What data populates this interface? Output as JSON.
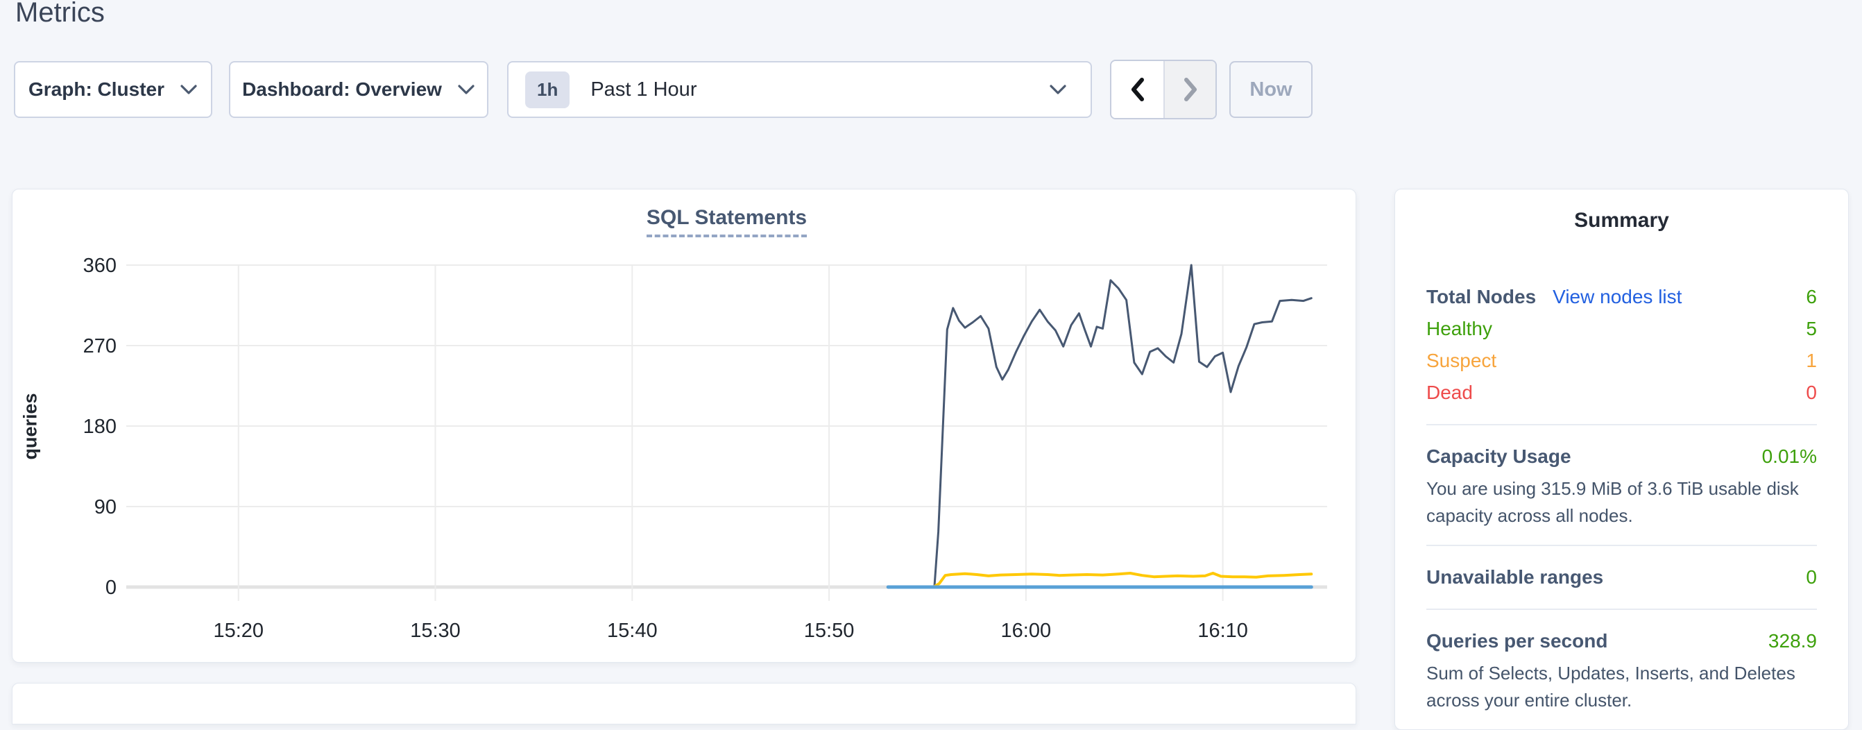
{
  "page": {
    "title": "Metrics"
  },
  "toolbar": {
    "graph_dropdown": {
      "label": "Graph: Cluster"
    },
    "dashboard_dropdown": {
      "label": "Dashboard: Overview"
    },
    "time_picker": {
      "badge": "1h",
      "label": "Past 1 Hour"
    },
    "now_button": {
      "label": "Now"
    }
  },
  "colors": {
    "page_background": "#f4f6fa",
    "accent_link": "#2260e0",
    "healthy_green": "#3da00b",
    "suspect_orange": "#f7a43c",
    "dead_red": "#ee4b4b",
    "heading_slate": "#475872"
  },
  "chart_data": {
    "type": "line",
    "title": "SQL Statements",
    "xlabel": "",
    "ylabel": "queries",
    "grid": true,
    "legend_position": "none",
    "x_axis": {
      "unit": "minutes-since-midnight",
      "min": 914.3,
      "max": 975.3,
      "ticks": [
        {
          "x": 920,
          "label": "15:20"
        },
        {
          "x": 930,
          "label": "15:30"
        },
        {
          "x": 940,
          "label": "15:40"
        },
        {
          "x": 950,
          "label": "15:50"
        },
        {
          "x": 960,
          "label": "16:00"
        },
        {
          "x": 970,
          "label": "16:10"
        }
      ]
    },
    "y_axis": {
      "min": 0,
      "max": 360,
      "ticks": [
        0,
        90,
        180,
        270,
        360
      ]
    },
    "series": [
      {
        "name": "series-1-navy",
        "color": "#475872",
        "stroke_width": 3,
        "points": [
          [
            953.0,
            0
          ],
          [
            955.35,
            0
          ],
          [
            955.55,
            62
          ],
          [
            956.0,
            288
          ],
          [
            956.3,
            312
          ],
          [
            956.6,
            298
          ],
          [
            956.9,
            290
          ],
          [
            957.3,
            296
          ],
          [
            957.7,
            303
          ],
          [
            958.1,
            289
          ],
          [
            958.5,
            246
          ],
          [
            958.8,
            232
          ],
          [
            959.1,
            243
          ],
          [
            959.5,
            263
          ],
          [
            959.9,
            281
          ],
          [
            960.3,
            297
          ],
          [
            960.7,
            310
          ],
          [
            961.1,
            297
          ],
          [
            961.5,
            287
          ],
          [
            961.9,
            269
          ],
          [
            962.3,
            293
          ],
          [
            962.7,
            306
          ],
          [
            963.0,
            287
          ],
          [
            963.3,
            269
          ],
          [
            963.6,
            291
          ],
          [
            963.9,
            289
          ],
          [
            964.3,
            343
          ],
          [
            964.7,
            334
          ],
          [
            965.1,
            321
          ],
          [
            965.5,
            251
          ],
          [
            965.9,
            238
          ],
          [
            966.3,
            263
          ],
          [
            966.7,
            267
          ],
          [
            967.1,
            258
          ],
          [
            967.5,
            251
          ],
          [
            967.9,
            283
          ],
          [
            968.4,
            360
          ],
          [
            968.8,
            252
          ],
          [
            969.2,
            246
          ],
          [
            969.6,
            258
          ],
          [
            970.0,
            262
          ],
          [
            970.4,
            218
          ],
          [
            970.8,
            247
          ],
          [
            971.2,
            268
          ],
          [
            971.6,
            294
          ],
          [
            972.0,
            296
          ],
          [
            972.5,
            297
          ],
          [
            972.9,
            320
          ],
          [
            973.5,
            321
          ],
          [
            974.1,
            320
          ],
          [
            974.5,
            323
          ]
        ]
      },
      {
        "name": "series-2-yellow",
        "color": "#ffc805",
        "stroke_width": 4,
        "points": [
          [
            953.0,
            0
          ],
          [
            955.3,
            0
          ],
          [
            955.6,
            4
          ],
          [
            955.9,
            13
          ],
          [
            956.2,
            14
          ],
          [
            956.9,
            15
          ],
          [
            957.5,
            14
          ],
          [
            958.1,
            12.5
          ],
          [
            958.7,
            13.5
          ],
          [
            959.5,
            14
          ],
          [
            960.3,
            14.5
          ],
          [
            961.1,
            14
          ],
          [
            961.7,
            13
          ],
          [
            962.3,
            13.5
          ],
          [
            963.1,
            14
          ],
          [
            963.9,
            13.5
          ],
          [
            964.7,
            14.5
          ],
          [
            965.3,
            15.5
          ],
          [
            965.9,
            13
          ],
          [
            966.5,
            11.5
          ],
          [
            967.1,
            12
          ],
          [
            967.7,
            12.5
          ],
          [
            968.5,
            12
          ],
          [
            969.1,
            12.5
          ],
          [
            969.5,
            15.5
          ],
          [
            969.9,
            12
          ],
          [
            970.5,
            11.5
          ],
          [
            971.1,
            11.5
          ],
          [
            971.7,
            11
          ],
          [
            972.3,
            12.5
          ],
          [
            973.1,
            13
          ],
          [
            973.9,
            14
          ],
          [
            974.5,
            14.5
          ]
        ]
      },
      {
        "name": "series-3-blue",
        "color": "#58a0d6",
        "stroke_width": 5,
        "points": [
          [
            953.0,
            0
          ],
          [
            974.5,
            0
          ]
        ]
      }
    ]
  },
  "summary": {
    "title": "Summary",
    "nodes": {
      "label": "Total Nodes",
      "link": "View nodes list",
      "value": "6",
      "rows": [
        {
          "label": "Healthy",
          "value": "5"
        },
        {
          "label": "Suspect",
          "value": "1"
        },
        {
          "label": "Dead",
          "value": "0"
        }
      ]
    },
    "capacity": {
      "label": "Capacity Usage",
      "value": "0.01%",
      "description": "You are using 315.9 MiB of 3.6 TiB usable disk capacity across all nodes."
    },
    "unavailable": {
      "label": "Unavailable ranges",
      "value": "0"
    },
    "qps": {
      "label": "Queries per second",
      "value": "328.9",
      "description": "Sum of Selects, Updates, Inserts, and Deletes across your entire cluster."
    }
  }
}
